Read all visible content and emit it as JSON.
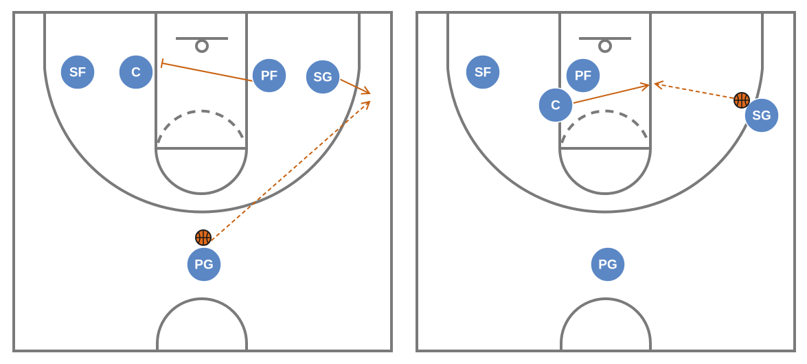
{
  "colors": {
    "court_lines": "#7a7a7a",
    "player_fill": "#5b87c5",
    "player_text": "#ffffff",
    "action": "#c8600e",
    "ball": "#e06a1a"
  },
  "legend_semantics": {
    "solid_arrow": "player movement",
    "dashed_arrow": "pass",
    "flat_end": "screen"
  },
  "panels": [
    {
      "players": [
        {
          "label": "SF"
        },
        {
          "label": "C"
        },
        {
          "label": "PF"
        },
        {
          "label": "SG"
        },
        {
          "label": "PG"
        }
      ],
      "ball_holder": "PG"
    },
    {
      "players": [
        {
          "label": "SF"
        },
        {
          "label": "PF"
        },
        {
          "label": "C"
        },
        {
          "label": "SG"
        },
        {
          "label": "PG"
        }
      ],
      "ball_holder": "SG"
    }
  ]
}
